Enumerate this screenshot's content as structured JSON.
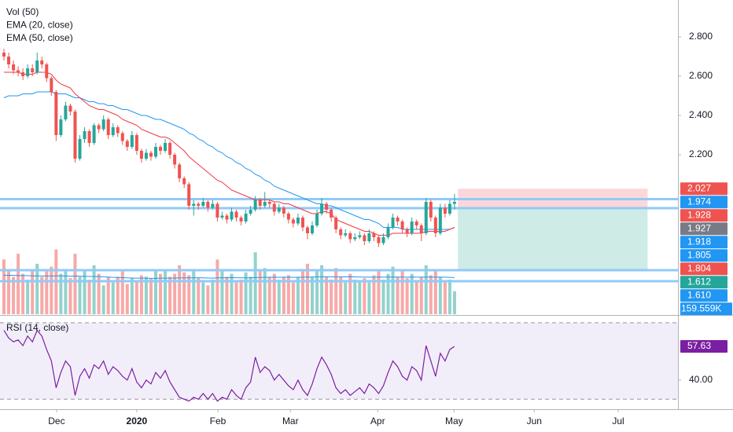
{
  "chart_data": {
    "type": "candlestick",
    "legend": [
      "Vol (50)",
      "EMA (20, close)",
      "EMA (50, close)"
    ],
    "colors": {
      "up": "#26a69a",
      "down": "#ef5350",
      "ema20": "#f23645",
      "ema50": "#2196f3",
      "vol_ma": "#2196f3",
      "rsi": "#7b1fa2",
      "levels": "#90caf9"
    },
    "xlim": [
      -0.83,
      142.1
    ],
    "xticks": [
      {
        "value": 11.1,
        "label": "Dec"
      },
      {
        "value": 28,
        "label": "2020"
      },
      {
        "value": 45.1,
        "label": "Feb"
      },
      {
        "value": 60.4,
        "label": "Mar"
      },
      {
        "value": 78.8,
        "label": "Apr"
      },
      {
        "value": 94.9,
        "label": "May"
      },
      {
        "value": 111.8,
        "label": "Jun"
      },
      {
        "value": 129.5,
        "label": "Jul"
      }
    ],
    "ylim": [
      1.388,
      2.988
    ],
    "yticks": [
      {
        "value": 2.8,
        "label": "2.800"
      },
      {
        "value": 2.6,
        "label": "2.600"
      },
      {
        "value": 2.4,
        "label": "2.400"
      },
      {
        "value": 2.2,
        "label": "2.200"
      }
    ],
    "candles": [
      [
        2.72,
        2.74,
        2.68,
        2.7
      ],
      [
        2.7,
        2.72,
        2.64,
        2.66
      ],
      [
        2.66,
        2.68,
        2.61,
        2.63
      ],
      [
        2.63,
        2.65,
        2.6,
        2.62
      ],
      [
        2.62,
        2.64,
        2.58,
        2.6
      ],
      [
        2.6,
        2.66,
        2.59,
        2.64
      ],
      [
        2.64,
        2.66,
        2.6,
        2.62
      ],
      [
        2.62,
        2.72,
        2.61,
        2.68
      ],
      [
        2.68,
        2.7,
        2.64,
        2.66
      ],
      [
        2.66,
        2.67,
        2.57,
        2.59
      ],
      [
        2.59,
        2.6,
        2.5,
        2.52
      ],
      [
        2.52,
        2.53,
        2.27,
        2.3
      ],
      [
        2.3,
        2.4,
        2.29,
        2.38
      ],
      [
        2.38,
        2.47,
        2.37,
        2.45
      ],
      [
        2.45,
        2.46,
        2.4,
        2.42
      ],
      [
        2.42,
        2.43,
        2.16,
        2.18
      ],
      [
        2.18,
        2.3,
        2.17,
        2.28
      ],
      [
        2.28,
        2.34,
        2.26,
        2.32
      ],
      [
        2.32,
        2.33,
        2.24,
        2.26
      ],
      [
        2.26,
        2.36,
        2.25,
        2.35
      ],
      [
        2.35,
        2.36,
        2.31,
        2.33
      ],
      [
        2.33,
        2.4,
        2.32,
        2.38
      ],
      [
        2.38,
        2.39,
        2.28,
        2.3
      ],
      [
        2.3,
        2.36,
        2.29,
        2.34
      ],
      [
        2.34,
        2.35,
        2.29,
        2.31
      ],
      [
        2.31,
        2.32,
        2.25,
        2.27
      ],
      [
        2.27,
        2.28,
        2.22,
        2.24
      ],
      [
        2.24,
        2.32,
        2.23,
        2.3
      ],
      [
        2.3,
        2.31,
        2.2,
        2.22
      ],
      [
        2.22,
        2.23,
        2.16,
        2.18
      ],
      [
        2.18,
        2.23,
        2.17,
        2.21
      ],
      [
        2.21,
        2.22,
        2.17,
        2.19
      ],
      [
        2.19,
        2.26,
        2.18,
        2.24
      ],
      [
        2.24,
        2.25,
        2.2,
        2.22
      ],
      [
        2.22,
        2.28,
        2.21,
        2.26
      ],
      [
        2.26,
        2.27,
        2.18,
        2.2
      ],
      [
        2.2,
        2.21,
        2.13,
        2.15
      ],
      [
        2.15,
        2.16,
        2.06,
        2.08
      ],
      [
        2.08,
        2.09,
        2.03,
        2.05
      ],
      [
        2.05,
        2.06,
        1.92,
        1.94
      ],
      [
        1.94,
        1.97,
        1.89,
        1.95
      ],
      [
        1.95,
        1.96,
        1.92,
        1.94
      ],
      [
        1.94,
        1.98,
        1.93,
        1.96
      ],
      [
        1.96,
        1.97,
        1.91,
        1.93
      ],
      [
        1.93,
        1.97,
        1.92,
        1.95
      ],
      [
        1.95,
        1.96,
        1.86,
        1.88
      ],
      [
        1.88,
        1.91,
        1.87,
        1.89
      ],
      [
        1.89,
        1.9,
        1.85,
        1.87
      ],
      [
        1.87,
        1.93,
        1.86,
        1.91
      ],
      [
        1.91,
        1.92,
        1.86,
        1.88
      ],
      [
        1.88,
        1.89,
        1.84,
        1.86
      ],
      [
        1.86,
        1.92,
        1.85,
        1.9
      ],
      [
        1.9,
        1.94,
        1.89,
        1.92
      ],
      [
        1.92,
        1.99,
        1.91,
        1.97
      ],
      [
        1.97,
        1.98,
        1.92,
        1.94
      ],
      [
        1.94,
        2.01,
        1.93,
        1.96
      ],
      [
        1.96,
        1.97,
        1.93,
        1.95
      ],
      [
        1.95,
        1.96,
        1.89,
        1.91
      ],
      [
        1.91,
        1.95,
        1.9,
        1.93
      ],
      [
        1.93,
        1.94,
        1.88,
        1.9
      ],
      [
        1.9,
        1.91,
        1.85,
        1.87
      ],
      [
        1.87,
        1.88,
        1.83,
        1.85
      ],
      [
        1.85,
        1.9,
        1.84,
        1.88
      ],
      [
        1.88,
        1.89,
        1.81,
        1.83
      ],
      [
        1.83,
        1.84,
        1.77,
        1.8
      ],
      [
        1.8,
        1.86,
        1.79,
        1.84
      ],
      [
        1.84,
        1.92,
        1.83,
        1.9
      ],
      [
        1.9,
        1.98,
        1.89,
        1.95
      ],
      [
        1.95,
        1.96,
        1.9,
        1.92
      ],
      [
        1.92,
        1.93,
        1.86,
        1.88
      ],
      [
        1.88,
        1.89,
        1.8,
        1.82
      ],
      [
        1.82,
        1.83,
        1.77,
        1.79
      ],
      [
        1.79,
        1.82,
        1.78,
        1.8
      ],
      [
        1.8,
        1.81,
        1.75,
        1.77
      ],
      [
        1.77,
        1.8,
        1.76,
        1.78
      ],
      [
        1.78,
        1.81,
        1.77,
        1.79
      ],
      [
        1.79,
        1.8,
        1.74,
        1.76
      ],
      [
        1.76,
        1.82,
        1.75,
        1.8
      ],
      [
        1.8,
        1.81,
        1.76,
        1.78
      ],
      [
        1.78,
        1.79,
        1.73,
        1.75
      ],
      [
        1.75,
        1.8,
        1.74,
        1.78
      ],
      [
        1.78,
        1.85,
        1.77,
        1.83
      ],
      [
        1.83,
        1.9,
        1.82,
        1.88
      ],
      [
        1.88,
        1.89,
        1.84,
        1.86
      ],
      [
        1.86,
        1.87,
        1.8,
        1.82
      ],
      [
        1.82,
        1.83,
        1.78,
        1.8
      ],
      [
        1.8,
        1.88,
        1.79,
        1.86
      ],
      [
        1.86,
        1.87,
        1.82,
        1.84
      ],
      [
        1.84,
        1.85,
        1.76,
        1.8
      ],
      [
        1.8,
        1.98,
        1.79,
        1.96
      ],
      [
        1.96,
        1.97,
        1.86,
        1.88
      ],
      [
        1.88,
        1.89,
        1.78,
        1.8
      ],
      [
        1.8,
        1.95,
        1.79,
        1.93
      ],
      [
        1.93,
        1.95,
        1.88,
        1.9
      ],
      [
        1.9,
        1.97,
        1.89,
        1.95
      ],
      [
        1.95,
        2.0,
        1.92,
        1.96
      ]
    ],
    "ema20": [
      2.62,
      2.62,
      2.62,
      2.62,
      2.61,
      2.61,
      2.61,
      2.62,
      2.62,
      2.62,
      2.61,
      2.58,
      2.56,
      2.55,
      2.54,
      2.51,
      2.49,
      2.47,
      2.45,
      2.44,
      2.43,
      2.43,
      2.42,
      2.41,
      2.4,
      2.38,
      2.37,
      2.36,
      2.35,
      2.33,
      2.32,
      2.31,
      2.3,
      2.29,
      2.29,
      2.28,
      2.26,
      2.24,
      2.22,
      2.19,
      2.17,
      2.15,
      2.13,
      2.11,
      2.09,
      2.07,
      2.06,
      2.04,
      2.02,
      2.01,
      2.0,
      1.99,
      1.98,
      1.97,
      1.97,
      1.97,
      1.97,
      1.96,
      1.96,
      1.95,
      1.95,
      1.94,
      1.93,
      1.92,
      1.91,
      1.9,
      1.9,
      1.91,
      1.91,
      1.9,
      1.87,
      1.86,
      1.85,
      1.84,
      1.83,
      1.82,
      1.81,
      1.81,
      1.8,
      1.79,
      1.79,
      1.79,
      1.8,
      1.8,
      1.8,
      1.8,
      1.8,
      1.8,
      1.8,
      1.81,
      1.81,
      1.81,
      1.81,
      1.81,
      1.82,
      1.83
    ],
    "ema50": [
      2.49,
      2.5,
      2.5,
      2.5,
      2.51,
      2.51,
      2.51,
      2.52,
      2.52,
      2.52,
      2.52,
      2.51,
      2.51,
      2.51,
      2.5,
      2.49,
      2.49,
      2.48,
      2.47,
      2.47,
      2.46,
      2.46,
      2.45,
      2.45,
      2.44,
      2.43,
      2.43,
      2.42,
      2.41,
      2.4,
      2.4,
      2.39,
      2.38,
      2.38,
      2.37,
      2.36,
      2.35,
      2.34,
      2.33,
      2.31,
      2.3,
      2.28,
      2.27,
      2.25,
      2.24,
      2.22,
      2.21,
      2.19,
      2.18,
      2.16,
      2.15,
      2.13,
      2.12,
      2.1,
      2.09,
      2.07,
      2.06,
      2.04,
      2.03,
      2.02,
      2.01,
      2.0,
      1.99,
      1.98,
      1.97,
      1.96,
      1.95,
      1.95,
      1.94,
      1.94,
      1.93,
      1.92,
      1.91,
      1.9,
      1.89,
      1.88,
      1.87,
      1.87,
      1.86,
      1.85,
      1.83,
      1.83,
      1.83,
      1.83,
      1.82,
      1.82,
      1.82,
      1.82,
      1.82,
      1.82,
      1.82,
      1.82,
      1.82,
      1.82,
      1.82,
      1.83
    ],
    "vlim": [
      0,
      600
    ],
    "volume": [
      380,
      300,
      260,
      420,
      280,
      240,
      300,
      350,
      260,
      310,
      330,
      450,
      280,
      300,
      250,
      420,
      260,
      300,
      240,
      340,
      280,
      200,
      260,
      220,
      260,
      300,
      210,
      250,
      230,
      270,
      260,
      250,
      310,
      280,
      300,
      260,
      280,
      340,
      290,
      270,
      300,
      250,
      220,
      200,
      240,
      380,
      300,
      260,
      280,
      220,
      240,
      290,
      260,
      430,
      300,
      320,
      260,
      280,
      240,
      260,
      270,
      220,
      260,
      300,
      350,
      260,
      310,
      340,
      260,
      240,
      320,
      260,
      220,
      280,
      240,
      230,
      250,
      220,
      270,
      300,
      240,
      280,
      330,
      260,
      300,
      250,
      280,
      230,
      260,
      340,
      270,
      300,
      260,
      220,
      240,
      159.559
    ],
    "vol_ma": [
      270,
      270,
      270,
      268,
      268,
      268,
      266,
      266,
      266,
      265,
      265,
      266,
      266,
      265,
      264,
      265,
      264,
      263,
      262,
      262,
      261,
      259,
      258,
      256,
      255,
      254,
      252,
      251,
      250,
      250,
      250,
      249,
      249,
      250,
      250,
      250,
      251,
      252,
      252,
      252,
      253,
      253,
      252,
      251,
      250,
      252,
      253,
      253,
      254,
      253,
      252,
      252,
      252,
      254,
      255,
      256,
      256,
      257,
      256,
      257,
      257,
      256,
      256,
      257,
      258,
      258,
      259,
      260,
      260,
      259,
      260,
      260,
      259,
      260,
      259,
      258,
      258,
      257,
      257,
      258,
      257,
      258,
      258,
      258,
      258,
      257,
      258,
      257,
      257,
      258,
      258,
      258,
      257,
      257,
      256,
      254
    ],
    "volume_label": {
      "value": 159.559,
      "label": "159.559K"
    },
    "levels": [
      1.974,
      1.928,
      1.612,
      1.556
    ],
    "position": {
      "entry": 1.928,
      "stop": 2.027,
      "target": 1.612,
      "x": [
        95.7,
        135.7
      ]
    },
    "axis_labels": [
      {
        "value": 2.027,
        "label": "2.027",
        "color": "#ef5350"
      },
      {
        "value": 1.974,
        "label": "1.974",
        "color": "#2196f3"
      },
      {
        "value": 1.928,
        "label": "1.928",
        "color": "#ef5350"
      },
      {
        "value": 1.927,
        "label": "1.927",
        "color": "#787b86"
      },
      {
        "value": 1.918,
        "label": "1.918",
        "color": "#2196f3"
      },
      {
        "value": 1.805,
        "label": "1.805",
        "color": "#2196f3"
      },
      {
        "value": 1.804,
        "label": "1.804",
        "color": "#ef5350"
      },
      {
        "value": 1.612,
        "label": "1.612",
        "color": "#26a69a"
      },
      {
        "value": 1.61,
        "label": "1.610",
        "color": "#2196f3"
      }
    ],
    "rsi": {
      "title": "RSI (14, close)",
      "ylim": [
        25.2,
        72.4
      ],
      "yticks": [
        {
          "value": 40,
          "label": "40.00"
        }
      ],
      "bands": [
        70,
        30
      ],
      "values": [
        66,
        62,
        60,
        61,
        58,
        63,
        60,
        66,
        63,
        56,
        50,
        36,
        44,
        50,
        47,
        32,
        42,
        46,
        41,
        48,
        46,
        50,
        43,
        47,
        45,
        42,
        40,
        46,
        39,
        36,
        40,
        38,
        44,
        41,
        45,
        39,
        35,
        31,
        30,
        29,
        31,
        30,
        33,
        30,
        33,
        29,
        31,
        30,
        35,
        32,
        30,
        36,
        39,
        52,
        44,
        47,
        45,
        40,
        43,
        40,
        37,
        35,
        40,
        35,
        32,
        38,
        46,
        52,
        48,
        43,
        36,
        33,
        35,
        32,
        34,
        36,
        33,
        38,
        36,
        33,
        37,
        44,
        50,
        47,
        42,
        40,
        47,
        45,
        40,
        58,
        50,
        42,
        54,
        50,
        56,
        57.63
      ],
      "last_label": {
        "value": 57.63,
        "label": "57.63"
      }
    }
  }
}
